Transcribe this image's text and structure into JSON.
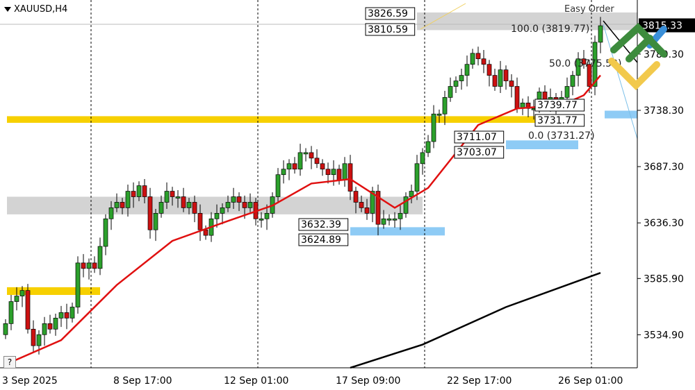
{
  "header": {
    "symbol_title": "XAUUSD,H4",
    "help_label": "?",
    "easy_order_label": "Easy Order"
  },
  "colors": {
    "bull": "#2ca02c",
    "bear": "#cc1111",
    "ma_fast": "#e01010",
    "ma_slow": "#000000",
    "zone_yellow": "#f7d000",
    "zone_grey": "#d3d3d3",
    "zone_blue": "#8ecbf5",
    "current_price_bg": "#000000"
  },
  "chart_data": {
    "type": "candlestick",
    "symbol": "XAUUSD",
    "timeframe": "H4",
    "ylim": [
      3505,
      3842
    ],
    "y_ticks": [
      "3789.30",
      "3738.30",
      "3687.30",
      "3636.30",
      "3585.90",
      "3534.90"
    ],
    "x_ticks": [
      "3 Sep 2025",
      "8 Sep 17:00",
      "12 Sep 01:00",
      "17 Sep 09:00",
      "22 Sep 17:00",
      "26 Sep 01:00"
    ],
    "current_price": "3815.33",
    "first_open": 3535,
    "closes": [
      3545,
      3565,
      3570,
      3575,
      3540,
      3525,
      3535,
      3545,
      3540,
      3550,
      3555,
      3550,
      3560,
      3600,
      3595,
      3600,
      3595,
      3615,
      3640,
      3650,
      3655,
      3650,
      3665,
      3660,
      3670,
      3660,
      3630,
      3645,
      3655,
      3665,
      3660,
      3660,
      3650,
      3655,
      3645,
      3630,
      3625,
      3640,
      3645,
      3650,
      3655,
      3660,
      3655,
      3650,
      3655,
      3640,
      3640,
      3645,
      3660,
      3680,
      3685,
      3690,
      3685,
      3700,
      3700,
      3695,
      3690,
      3685,
      3680,
      3685,
      3675,
      3690,
      3665,
      3655,
      3650,
      3645,
      3665,
      3635,
      3640,
      3640,
      3640,
      3645,
      3660,
      3665,
      3690,
      3700,
      3710,
      3735,
      3735,
      3750,
      3760,
      3765,
      3770,
      3780,
      3790,
      3785,
      3780,
      3770,
      3760,
      3775,
      3765,
      3760,
      3740,
      3745,
      3740,
      3740,
      3755,
      3745,
      3750,
      3745,
      3750,
      3760,
      3770,
      3785,
      3780,
      3760,
      3800,
      3815
    ],
    "ma_fast": [
      [
        0,
        3508
      ],
      [
        10,
        3530
      ],
      [
        20,
        3580
      ],
      [
        30,
        3620
      ],
      [
        40,
        3638
      ],
      [
        48,
        3652
      ],
      [
        55,
        3672
      ],
      [
        62,
        3676
      ],
      [
        70,
        3650
      ],
      [
        76,
        3668
      ],
      [
        85,
        3725
      ],
      [
        92,
        3740
      ],
      [
        100,
        3743
      ],
      [
        104,
        3752
      ],
      [
        107,
        3770
      ]
    ],
    "ma_slow": [
      [
        62,
        3505
      ],
      [
        75,
        3526
      ],
      [
        90,
        3560
      ],
      [
        107,
        3591
      ]
    ],
    "zones": [
      {
        "kind": "yellow",
        "from": 3727,
        "to": 3733,
        "start": 0,
        "end": 98
      },
      {
        "kind": "yellow",
        "from": 3571,
        "to": 3578,
        "start": 0,
        "end": 17
      },
      {
        "kind": "grey",
        "from": 3644,
        "to": 3660,
        "start": 0,
        "end": 75
      },
      {
        "kind": "grey",
        "from": 3811,
        "to": 3827,
        "start": 74,
        "end": 114
      },
      {
        "kind": "blue",
        "from": 3624.89,
        "to": 3632.39,
        "start": 62,
        "end": 79
      },
      {
        "kind": "blue",
        "from": 3703.07,
        "to": 3711.07,
        "start": 90,
        "end": 103
      }
    ],
    "price_labels": [
      "3826.59",
      "3810.59",
      "3632.39",
      "3624.89",
      "3711.07",
      "3703.07",
      "3739.77",
      "3731.77"
    ],
    "fib_labels": [
      "100.0 (3819.77)",
      "50.0 (3775.52)",
      "0.0 (3731.27)"
    ]
  }
}
